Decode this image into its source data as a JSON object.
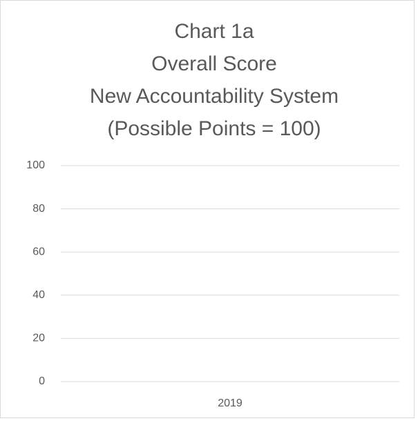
{
  "chart_data": {
    "type": "bar",
    "title": [
      "Chart 1a",
      "Overall Score",
      "New Accountability System",
      "(Possible Points = 100)"
    ],
    "categories": [
      "2019"
    ],
    "values": [
      null
    ],
    "color": "#4472c4",
    "ylim": [
      0,
      100
    ],
    "yticks": [
      0,
      20,
      40,
      60,
      80,
      100
    ],
    "grid": true
  }
}
